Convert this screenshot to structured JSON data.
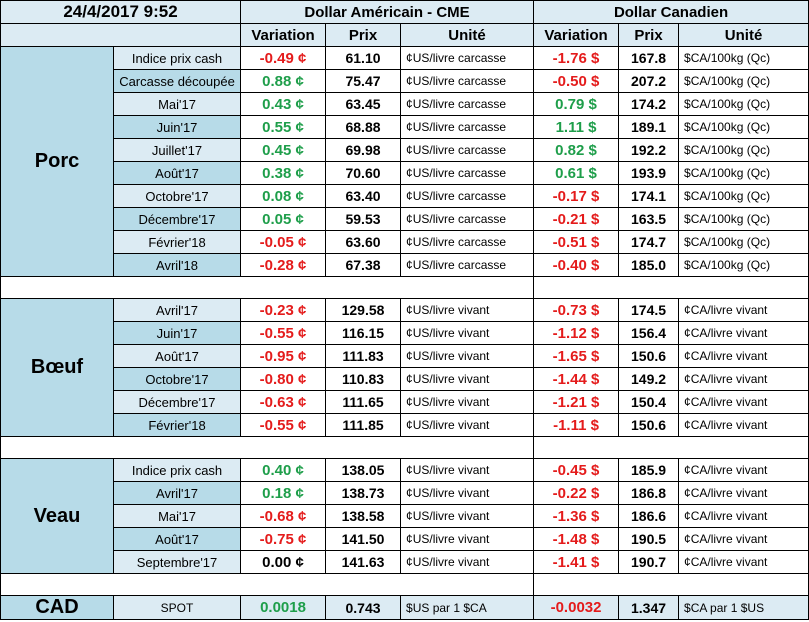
{
  "header": {
    "timestamp": "24/4/2017 9:52",
    "usd_title": "Dollar Américain - CME",
    "cad_title": "Dollar Canadien",
    "col_variation": "Variation",
    "col_prix": "Prix",
    "col_unite": "Unité"
  },
  "colors": {
    "positive": "#1e9e4a",
    "negative": "#e41b1b",
    "band_dark": "#b7dbe8",
    "band_light": "#dcebf3"
  },
  "groups": [
    {
      "name": "Porc",
      "rows": [
        {
          "label": "Indice prix cash",
          "usd_var": "-0.49 ¢",
          "usd_prix": "61.10",
          "usd_unit": "¢US/livre carcasse",
          "cad_var": "-1.76 $",
          "cad_prix": "167.8",
          "cad_unit": "$CA/100kg (Qc)"
        },
        {
          "label": "Carcasse découpée",
          "usd_var": "0.88 ¢",
          "usd_prix": "75.47",
          "usd_unit": "¢US/livre carcasse",
          "cad_var": "-0.50 $",
          "cad_prix": "207.2",
          "cad_unit": "$CA/100kg (Qc)"
        },
        {
          "label": "Mai'17",
          "usd_var": "0.43 ¢",
          "usd_prix": "63.45",
          "usd_unit": "¢US/livre carcasse",
          "cad_var": "0.79 $",
          "cad_prix": "174.2",
          "cad_unit": "$CA/100kg (Qc)"
        },
        {
          "label": "Juin'17",
          "usd_var": "0.55 ¢",
          "usd_prix": "68.88",
          "usd_unit": "¢US/livre carcasse",
          "cad_var": "1.11 $",
          "cad_prix": "189.1",
          "cad_unit": "$CA/100kg (Qc)"
        },
        {
          "label": "Juillet'17",
          "usd_var": "0.45 ¢",
          "usd_prix": "69.98",
          "usd_unit": "¢US/livre carcasse",
          "cad_var": "0.82 $",
          "cad_prix": "192.2",
          "cad_unit": "$CA/100kg (Qc)"
        },
        {
          "label": "Août'17",
          "usd_var": "0.38 ¢",
          "usd_prix": "70.60",
          "usd_unit": "¢US/livre carcasse",
          "cad_var": "0.61 $",
          "cad_prix": "193.9",
          "cad_unit": "$CA/100kg (Qc)"
        },
        {
          "label": "Octobre'17",
          "usd_var": "0.08 ¢",
          "usd_prix": "63.40",
          "usd_unit": "¢US/livre carcasse",
          "cad_var": "-0.17 $",
          "cad_prix": "174.1",
          "cad_unit": "$CA/100kg (Qc)"
        },
        {
          "label": "Décembre'17",
          "usd_var": "0.05 ¢",
          "usd_prix": "59.53",
          "usd_unit": "¢US/livre carcasse",
          "cad_var": "-0.21 $",
          "cad_prix": "163.5",
          "cad_unit": "$CA/100kg (Qc)"
        },
        {
          "label": "Février'18",
          "usd_var": "-0.05 ¢",
          "usd_prix": "63.60",
          "usd_unit": "¢US/livre carcasse",
          "cad_var": "-0.51 $",
          "cad_prix": "174.7",
          "cad_unit": "$CA/100kg (Qc)"
        },
        {
          "label": "Avril'18",
          "usd_var": "-0.28 ¢",
          "usd_prix": "67.38",
          "usd_unit": "¢US/livre carcasse",
          "cad_var": "-0.40 $",
          "cad_prix": "185.0",
          "cad_unit": "$CA/100kg (Qc)"
        }
      ]
    },
    {
      "name": "Bœuf",
      "rows": [
        {
          "label": "Avril'17",
          "usd_var": "-0.23 ¢",
          "usd_prix": "129.58",
          "usd_unit": "¢US/livre vivant",
          "cad_var": "-0.73 $",
          "cad_prix": "174.5",
          "cad_unit": "¢CA/livre vivant"
        },
        {
          "label": "Juin'17",
          "usd_var": "-0.55 ¢",
          "usd_prix": "116.15",
          "usd_unit": "¢US/livre vivant",
          "cad_var": "-1.12 $",
          "cad_prix": "156.4",
          "cad_unit": "¢CA/livre vivant"
        },
        {
          "label": "Août'17",
          "usd_var": "-0.95 ¢",
          "usd_prix": "111.83",
          "usd_unit": "¢US/livre vivant",
          "cad_var": "-1.65 $",
          "cad_prix": "150.6",
          "cad_unit": "¢CA/livre vivant"
        },
        {
          "label": "Octobre'17",
          "usd_var": "-0.80 ¢",
          "usd_prix": "110.83",
          "usd_unit": "¢US/livre vivant",
          "cad_var": "-1.44 $",
          "cad_prix": "149.2",
          "cad_unit": "¢CA/livre vivant"
        },
        {
          "label": "Décembre'17",
          "usd_var": "-0.63 ¢",
          "usd_prix": "111.65",
          "usd_unit": "¢US/livre vivant",
          "cad_var": "-1.21 $",
          "cad_prix": "150.4",
          "cad_unit": "¢CA/livre vivant"
        },
        {
          "label": "Février'18",
          "usd_var": "-0.55 ¢",
          "usd_prix": "111.85",
          "usd_unit": "¢US/livre vivant",
          "cad_var": "-1.11 $",
          "cad_prix": "150.6",
          "cad_unit": "¢CA/livre vivant"
        }
      ]
    },
    {
      "name": "Veau",
      "rows": [
        {
          "label": "Indice prix cash",
          "usd_var": "0.40 ¢",
          "usd_prix": "138.05",
          "usd_unit": "¢US/livre vivant",
          "cad_var": "-0.45 $",
          "cad_prix": "185.9",
          "cad_unit": "¢CA/livre vivant"
        },
        {
          "label": "Avril'17",
          "usd_var": "0.18 ¢",
          "usd_prix": "138.73",
          "usd_unit": "¢US/livre vivant",
          "cad_var": "-0.22 $",
          "cad_prix": "186.8",
          "cad_unit": "¢CA/livre vivant"
        },
        {
          "label": "Mai'17",
          "usd_var": "-0.68 ¢",
          "usd_prix": "138.58",
          "usd_unit": "¢US/livre vivant",
          "cad_var": "-1.36 $",
          "cad_prix": "186.6",
          "cad_unit": "¢CA/livre vivant"
        },
        {
          "label": "Août'17",
          "usd_var": "-0.75 ¢",
          "usd_prix": "141.50",
          "usd_unit": "¢US/livre vivant",
          "cad_var": "-1.48 $",
          "cad_prix": "190.5",
          "cad_unit": "¢CA/livre vivant"
        },
        {
          "label": "Septembre'17",
          "usd_var": "0.00 ¢",
          "usd_prix": "141.63",
          "usd_unit": "¢US/livre vivant",
          "cad_var": "-1.41 $",
          "cad_prix": "190.7",
          "cad_unit": "¢CA/livre vivant"
        }
      ]
    }
  ],
  "cad": {
    "name": "CAD",
    "label": "SPOT",
    "usd_var": "0.0018",
    "usd_prix": "0.743",
    "usd_unit": "$US par 1 $CA",
    "cad_var": "-0.0032",
    "cad_prix": "1.347",
    "cad_unit": "$CA par 1 $US"
  }
}
